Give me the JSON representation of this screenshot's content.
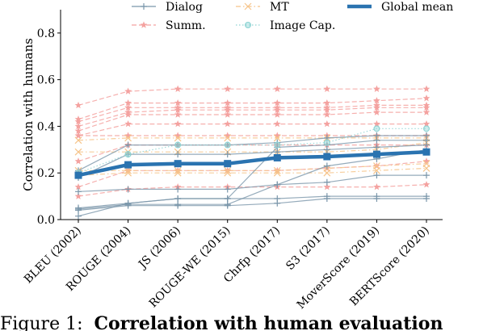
{
  "chart_data": {
    "type": "line",
    "categories": [
      "BLEU (2002)",
      "ROUGE (2004)",
      "JS (2006)",
      "ROUGE-WE (2015)",
      "Chrfp (2017)",
      "S3 (2017)",
      "MoverScore (2019)",
      "BERTScore (2020)"
    ],
    "ylabel": "Correlation with humans",
    "xlabel": "",
    "ylim": [
      0,
      0.9
    ],
    "yticks": [
      "0.0",
      "0.2",
      "0.4",
      "0.6",
      "0.8"
    ],
    "legend_position": "top",
    "legend": [
      {
        "name": "Dialog",
        "color": "#7a96aa",
        "marker": "plus",
        "dash": "solid"
      },
      {
        "name": "Summ.",
        "color": "#f4a2a0",
        "marker": "star",
        "dash": "dashed"
      },
      {
        "name": "MT",
        "color": "#f6c48a",
        "marker": "x",
        "dash": "dashdot"
      },
      {
        "name": "Image Cap.",
        "color": "#8fd4d4",
        "marker": "circle",
        "dash": "dotted"
      },
      {
        "name": "Global mean",
        "color": "#2a73b0",
        "marker": "none",
        "dash": "solid"
      }
    ],
    "series": [
      {
        "group": "Dialog",
        "values": [
          0.21,
          0.32,
          0.32,
          0.32,
          0.33,
          0.35,
          0.36,
          0.36
        ]
      },
      {
        "group": "Dialog",
        "values": [
          0.18,
          0.28,
          0.28,
          0.28,
          0.29,
          0.3,
          0.31,
          0.32
        ]
      },
      {
        "group": "Dialog",
        "values": [
          0.12,
          0.13,
          0.13,
          0.13,
          0.15,
          0.16,
          0.19,
          0.19
        ]
      },
      {
        "group": "Dialog",
        "values": [
          0.05,
          0.07,
          0.09,
          0.09,
          0.31,
          0.32,
          0.34,
          0.34
        ]
      },
      {
        "group": "Dialog",
        "values": [
          0.045,
          0.065,
          0.065,
          0.065,
          0.15,
          0.23,
          0.26,
          0.3
        ]
      },
      {
        "group": "Dialog",
        "values": [
          0.04,
          0.06,
          0.06,
          0.06,
          0.07,
          0.09,
          0.09,
          0.09
        ]
      },
      {
        "group": "Dialog",
        "values": [
          0.015,
          0.07,
          0.09,
          0.09,
          0.09,
          0.1,
          0.1,
          0.1
        ]
      },
      {
        "group": "Summ.",
        "values": [
          0.49,
          0.55,
          0.56,
          0.56,
          0.56,
          0.56,
          0.56,
          0.56
        ]
      },
      {
        "group": "Summ.",
        "values": [
          0.43,
          0.5,
          0.5,
          0.5,
          0.5,
          0.5,
          0.51,
          0.52
        ]
      },
      {
        "group": "Summ.",
        "values": [
          0.42,
          0.48,
          0.48,
          0.48,
          0.48,
          0.48,
          0.49,
          0.49
        ]
      },
      {
        "group": "Summ.",
        "values": [
          0.4,
          0.46,
          0.47,
          0.47,
          0.47,
          0.47,
          0.48,
          0.48
        ]
      },
      {
        "group": "Summ.",
        "values": [
          0.38,
          0.45,
          0.45,
          0.45,
          0.45,
          0.45,
          0.46,
          0.46
        ]
      },
      {
        "group": "Summ.",
        "values": [
          0.36,
          0.41,
          0.41,
          0.41,
          0.41,
          0.41,
          0.41,
          0.41
        ]
      },
      {
        "group": "Summ.",
        "values": [
          0.36,
          0.36,
          0.36,
          0.36,
          0.36,
          0.36,
          0.36,
          0.36
        ]
      },
      {
        "group": "Summ.",
        "values": [
          0.25,
          0.32,
          0.32,
          0.32,
          0.32,
          0.32,
          0.32,
          0.32
        ]
      },
      {
        "group": "Summ.",
        "values": [
          0.14,
          0.21,
          0.21,
          0.21,
          0.21,
          0.22,
          0.23,
          0.25
        ]
      },
      {
        "group": "Summ.",
        "values": [
          0.1,
          0.13,
          0.14,
          0.14,
          0.14,
          0.14,
          0.14,
          0.15
        ]
      },
      {
        "group": "MT",
        "values": [
          0.34,
          0.35,
          0.35,
          0.35,
          0.35,
          0.35,
          0.35,
          0.35
        ]
      },
      {
        "group": "MT",
        "values": [
          0.29,
          0.29,
          0.29,
          0.29,
          0.29,
          0.29,
          0.3,
          0.33
        ]
      },
      {
        "group": "MT",
        "values": [
          0.21,
          0.21,
          0.21,
          0.21,
          0.21,
          0.22,
          0.23,
          0.24
        ]
      },
      {
        "group": "MT",
        "values": [
          0.19,
          0.2,
          0.2,
          0.2,
          0.2,
          0.2,
          0.21,
          0.22
        ]
      },
      {
        "group": "Image Cap.",
        "values": [
          0.2,
          0.28,
          0.32,
          0.32,
          0.32,
          0.33,
          0.39,
          0.39
        ]
      },
      {
        "group": "Global mean",
        "values": [
          0.19,
          0.235,
          0.24,
          0.24,
          0.265,
          0.27,
          0.28,
          0.29
        ]
      }
    ]
  },
  "caption": {
    "prefix": "Figure 1:",
    "bold": "Correlation with human evaluation"
  }
}
